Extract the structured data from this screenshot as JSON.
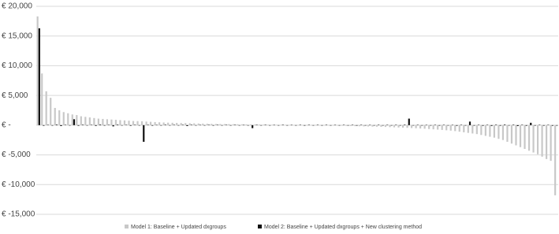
{
  "chart_data": {
    "type": "bar",
    "categories": [
      null,
      null,
      null,
      null,
      null,
      null,
      null,
      null,
      null,
      null,
      null,
      null,
      null,
      null,
      null,
      null,
      null,
      null,
      null,
      null,
      null,
      null,
      null,
      null,
      null,
      null,
      null,
      null,
      null,
      null,
      null,
      null,
      null,
      null,
      null,
      null,
      null,
      null,
      null,
      null,
      null,
      null,
      null,
      null,
      null,
      null,
      null,
      null,
      null,
      null,
      null,
      null,
      null,
      null,
      null,
      null,
      null,
      null,
      null,
      null,
      null,
      null,
      null,
      null,
      null,
      null,
      null,
      null,
      null,
      null,
      null,
      null,
      null,
      null,
      null,
      null,
      null,
      null,
      null,
      null,
      null,
      null,
      null,
      null,
      null,
      null,
      null,
      null,
      null,
      null,
      null,
      null,
      null,
      null,
      null,
      null,
      null,
      null,
      null,
      null,
      null,
      null,
      null,
      null,
      null,
      null,
      null,
      null,
      null,
      null,
      null,
      null,
      null,
      null,
      null,
      null,
      null,
      null,
      null,
      null
    ],
    "series": [
      {
        "name": "Model 1: Baseline + Updated dxgroups",
        "color": "#c8c8c8",
        "values": [
          18300,
          8700,
          5700,
          4600,
          2900,
          2500,
          2200,
          2000,
          1800,
          1700,
          1500,
          1400,
          1300,
          1200,
          1100,
          1050,
          1000,
          950,
          900,
          850,
          800,
          750,
          700,
          680,
          650,
          600,
          560,
          520,
          480,
          450,
          420,
          400,
          380,
          360,
          340,
          320,
          300,
          280,
          260,
          240,
          220,
          200,
          190,
          180,
          170,
          160,
          150,
          140,
          130,
          120,
          110,
          100,
          90,
          80,
          70,
          60,
          50,
          40,
          30,
          20,
          10,
          0,
          -10,
          -20,
          -30,
          -40,
          -50,
          -60,
          -70,
          -80,
          -100,
          -120,
          -140,
          -160,
          -180,
          -200,
          -220,
          -240,
          -260,
          -280,
          -300,
          -330,
          -360,
          -390,
          -420,
          -450,
          -480,
          -520,
          -560,
          -600,
          -650,
          -700,
          -750,
          -800,
          -860,
          -920,
          -1000,
          -1100,
          -1200,
          -1300,
          -1400,
          -1500,
          -1650,
          -1800,
          -1950,
          -2100,
          -2300,
          -2500,
          -2800,
          -3100,
          -3400,
          -3700,
          -4000,
          -4300,
          -4600,
          -4900,
          -5300,
          -5700,
          -6000,
          -11800
        ]
      },
      {
        "name": "Model 2: Baseline + Updated dxgroups + New clustering method",
        "color": "#111111",
        "values": [
          16300,
          -100,
          50,
          -80,
          100,
          -150,
          60,
          -50,
          1000,
          -100,
          80,
          -60,
          50,
          -120,
          100,
          -80,
          60,
          -200,
          90,
          -60,
          50,
          -100,
          70,
          -50,
          -2800,
          60,
          -90,
          40,
          -70,
          80,
          -60,
          50,
          -40,
          60,
          -150,
          70,
          -50,
          40,
          -60,
          50,
          -80,
          60,
          -40,
          50,
          -70,
          60,
          -50,
          40,
          -60,
          -500,
          50,
          -40,
          60,
          -50,
          40,
          -60,
          70,
          -50,
          40,
          -60,
          50,
          -80,
          60,
          -40,
          50,
          -70,
          60,
          -50,
          40,
          -60,
          50,
          -40,
          60,
          -80,
          50,
          -60,
          40,
          -50,
          70,
          -60,
          50,
          -40,
          60,
          -50,
          80,
          1100,
          -60,
          50,
          -70,
          40,
          -60,
          50,
          -80,
          60,
          -50,
          40,
          -100,
          60,
          -70,
          600,
          -80,
          50,
          -100,
          60,
          -120,
          80,
          -90,
          100,
          -60,
          80,
          -150,
          70,
          -100,
          400,
          -80,
          60,
          -90,
          50,
          -100,
          -80
        ]
      }
    ],
    "ylim": [
      -15000,
      20000
    ],
    "yticks": [
      {
        "value": -15000,
        "label": "€ -15,000"
      },
      {
        "value": -10000,
        "label": "€ -10,000"
      },
      {
        "value": -5000,
        "label": "€ -5,000"
      },
      {
        "value": 0,
        "label": "€ -"
      },
      {
        "value": 5000,
        "label": "€ 5,000"
      },
      {
        "value": 10000,
        "label": "€ 10,000"
      },
      {
        "value": 15000,
        "label": "€ 15,000"
      },
      {
        "value": 20000,
        "label": "€ 20,000"
      }
    ],
    "grid": true,
    "legend": "bottom"
  }
}
